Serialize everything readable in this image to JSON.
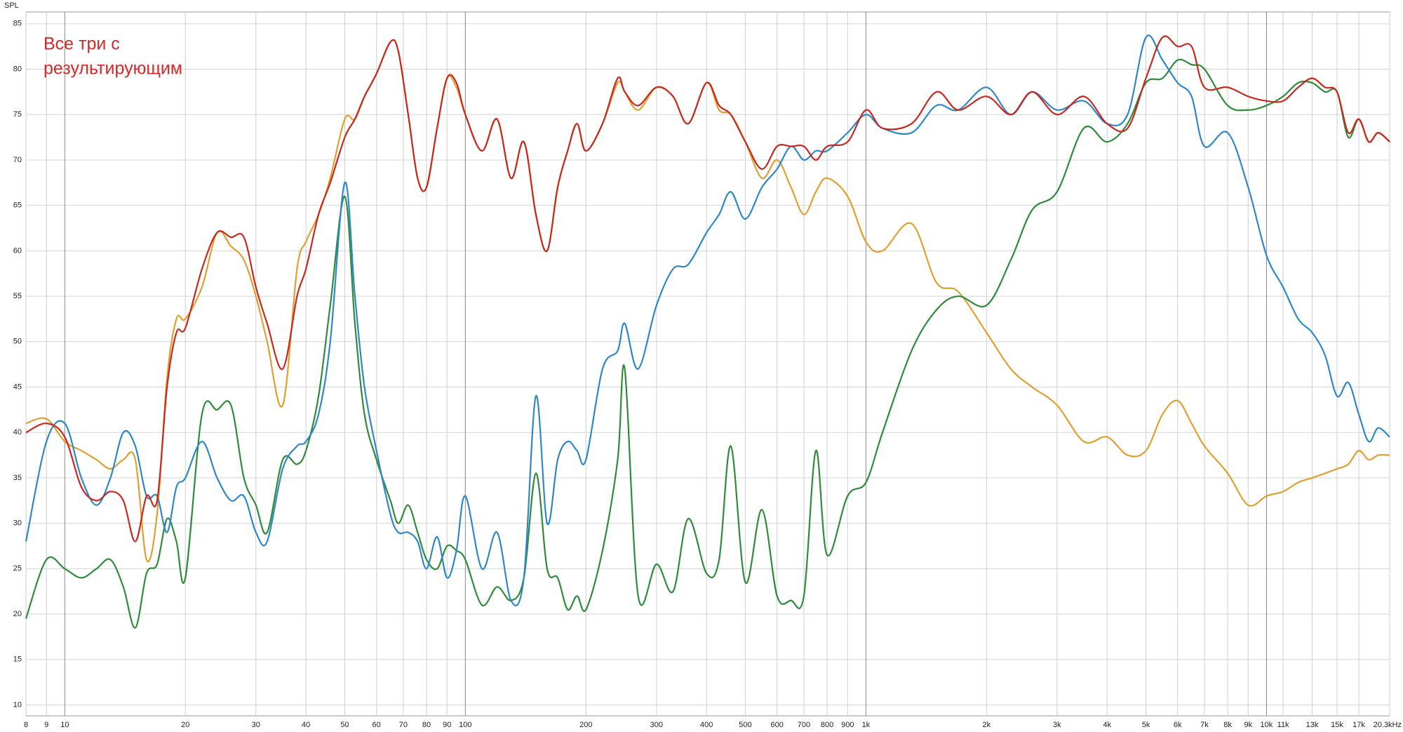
{
  "chart_data": {
    "type": "line",
    "y_label": "SPL",
    "annotation": [
      "Все три с",
      "результирующим"
    ],
    "annotation_color": "#d42a2a",
    "x_log": true,
    "grid": true,
    "xlim": [
      8,
      20300
    ],
    "ylim": [
      8.8,
      86.3
    ],
    "yticks": [
      10,
      15,
      20,
      25,
      30,
      35,
      40,
      45,
      50,
      55,
      60,
      65,
      70,
      75,
      80,
      85
    ],
    "xticks": [
      8,
      9,
      10,
      20,
      30,
      40,
      50,
      60,
      70,
      80,
      90,
      100,
      200,
      300,
      400,
      500,
      600,
      700,
      800,
      900,
      {
        "value": 1000,
        "label": "1k"
      },
      {
        "value": 2000,
        "label": "2k"
      },
      {
        "value": 3000,
        "label": "3k"
      },
      {
        "value": 4000,
        "label": "4k"
      },
      {
        "value": 5000,
        "label": "5k"
      },
      {
        "value": 6000,
        "label": "6k"
      },
      {
        "value": 7000,
        "label": "7k"
      },
      {
        "value": 8000,
        "label": "8k"
      },
      {
        "value": 9000,
        "label": "9k"
      },
      {
        "value": 10000,
        "label": "10k"
      },
      {
        "value": 11000,
        "label": "11k"
      },
      {
        "value": 13000,
        "label": "13k"
      },
      {
        "value": 15000,
        "label": "15k"
      },
      {
        "value": 17000,
        "label": "17k"
      },
      {
        "value": 20300,
        "label": "20.3kHz"
      }
    ],
    "x": [
      8,
      9,
      10,
      11,
      12,
      13,
      14,
      15,
      16,
      17,
      18,
      19,
      20,
      22,
      24,
      26,
      28,
      30,
      32,
      35,
      38,
      40,
      43,
      46,
      50,
      53,
      56,
      60,
      65,
      68,
      72,
      76,
      80,
      85,
      90,
      95,
      100,
      110,
      120,
      130,
      140,
      150,
      160,
      170,
      180,
      190,
      200,
      220,
      240,
      250,
      270,
      300,
      330,
      360,
      400,
      430,
      460,
      500,
      550,
      600,
      650,
      700,
      750,
      800,
      900,
      1000,
      1100,
      1300,
      1500,
      1700,
      2000,
      2300,
      2600,
      3000,
      3500,
      4000,
      4500,
      5000,
      5500,
      6000,
      6500,
      7000,
      8000,
      9000,
      10000,
      11000,
      12000,
      13000,
      14000,
      15000,
      16000,
      17000,
      18000,
      19000,
      20300
    ],
    "series": [
      {
        "color": "#e0a030",
        "values": [
          41,
          41.5,
          39,
          38,
          37,
          36,
          37,
          37,
          26,
          31,
          46,
          52.5,
          52.5,
          56,
          62,
          60.5,
          59,
          55,
          50,
          43,
          58,
          61,
          64,
          68,
          74.5,
          74.5,
          77,
          79.5,
          83,
          82,
          75,
          68,
          67,
          73.5,
          79,
          78,
          75,
          71,
          74.5,
          68,
          72,
          64,
          60,
          67,
          71,
          74,
          71,
          74,
          78.5,
          77.5,
          75.5,
          78,
          77,
          74,
          78.5,
          75.5,
          75,
          72,
          68,
          70,
          67,
          64,
          66.5,
          68,
          66,
          61,
          60,
          63,
          56.5,
          55.5,
          51,
          47,
          45,
          43,
          39,
          39.5,
          37.5,
          38,
          42,
          43.5,
          41,
          38.5,
          35.5,
          32,
          33,
          33.5,
          34.5,
          35,
          35.5,
          36,
          36.5,
          38,
          37,
          37.5,
          37.5
        ]
      },
      {
        "color": "#2e8b3a",
        "values": [
          19.5,
          26,
          25,
          24,
          25,
          26,
          23,
          18.5,
          24.5,
          25.5,
          30.5,
          28,
          24,
          42,
          42.5,
          43,
          35,
          32,
          29,
          37,
          36.5,
          38,
          44,
          54,
          66,
          52,
          42,
          37,
          32.5,
          30,
          32,
          29,
          26,
          25,
          27.5,
          27,
          26,
          21,
          23,
          21.5,
          24,
          35.5,
          25,
          24,
          20.5,
          22,
          20.5,
          27,
          37,
          47,
          22,
          25.5,
          22.5,
          30.5,
          24.5,
          26,
          38.5,
          23.5,
          31.5,
          22,
          21.5,
          22,
          38,
          26.5,
          33,
          34.5,
          40,
          49,
          53.5,
          55,
          54,
          59,
          64.5,
          66.5,
          73.5,
          72,
          74,
          78.5,
          79,
          81,
          80.5,
          80,
          76,
          75.5,
          76,
          77,
          78.5,
          78.5,
          77.5,
          77.5,
          72.5,
          74.5,
          72,
          73,
          72
        ]
      },
      {
        "color": "#2f87c8",
        "values": [
          28,
          39,
          41,
          35,
          32,
          35,
          40,
          38.5,
          33,
          33,
          29,
          34,
          35,
          39,
          35,
          32.5,
          33,
          29,
          28,
          36,
          38.5,
          39,
          42,
          50,
          67.5,
          55,
          45,
          38,
          31,
          29,
          29,
          28,
          25,
          28.5,
          24,
          27,
          33,
          25,
          29,
          21.5,
          24,
          44,
          30,
          37,
          39,
          38,
          37,
          47,
          49,
          52,
          47,
          54,
          58,
          58.5,
          62,
          64,
          66.5,
          63.5,
          67,
          69,
          71.5,
          70,
          71,
          71,
          73,
          75,
          73.5,
          73,
          76,
          75.5,
          78,
          75,
          77.5,
          75.5,
          76.5,
          74,
          75,
          83.5,
          81,
          78.5,
          77,
          71.5,
          73,
          67,
          59.5,
          56,
          52.5,
          51,
          48.5,
          44,
          45.5,
          42,
          39,
          40.5,
          39.5
        ]
      },
      {
        "color": "#c8281f",
        "values": [
          40,
          41,
          39.5,
          34,
          32.5,
          33.5,
          32.5,
          28,
          33,
          32.5,
          45,
          51,
          51.5,
          58,
          62,
          61.5,
          61.5,
          56,
          52,
          47,
          55,
          58,
          64,
          67.5,
          72.5,
          74.5,
          77,
          79.5,
          83,
          82,
          75,
          68,
          67,
          73.5,
          79,
          78.5,
          75,
          71,
          74.5,
          68,
          72,
          64,
          60,
          67,
          71,
          74,
          71,
          74,
          79,
          77.5,
          76,
          78,
          77,
          74,
          78.5,
          76,
          75,
          72,
          69,
          71.5,
          71.5,
          71.5,
          70,
          71.5,
          72,
          75.5,
          73.5,
          74,
          77.5,
          75.5,
          77,
          75,
          77.5,
          75,
          77,
          74,
          73.5,
          79,
          83.5,
          82.5,
          82.5,
          78,
          78,
          77,
          76.5,
          76.5,
          78,
          79,
          78,
          77.5,
          73,
          74.5,
          72,
          73,
          72
        ]
      }
    ]
  }
}
